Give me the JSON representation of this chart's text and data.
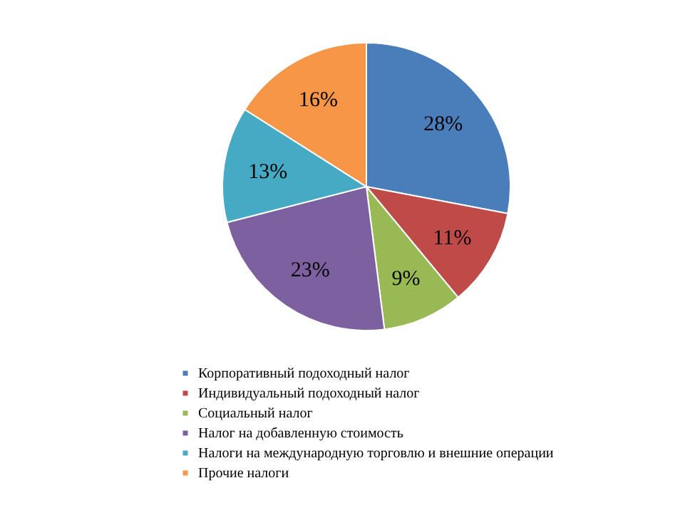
{
  "chart_data": {
    "type": "pie",
    "categories": [
      "Корпоративный подоходный налог",
      "Индивидуальный подоходный налог",
      "Социальный налог",
      "Налог на добавленную стоимость",
      "Налоги на международную торговлю и внешние операции",
      "Прочие налоги"
    ],
    "values": [
      28,
      11,
      9,
      23,
      13,
      16
    ],
    "colors": [
      "#4a7ebb",
      "#be4b48",
      "#98b954",
      "#7d60a0",
      "#46aac5",
      "#f79646"
    ],
    "value_labels": [
      "28%",
      "11%",
      "9%",
      "23%",
      "13%",
      "16%"
    ],
    "legend": "bottom"
  }
}
